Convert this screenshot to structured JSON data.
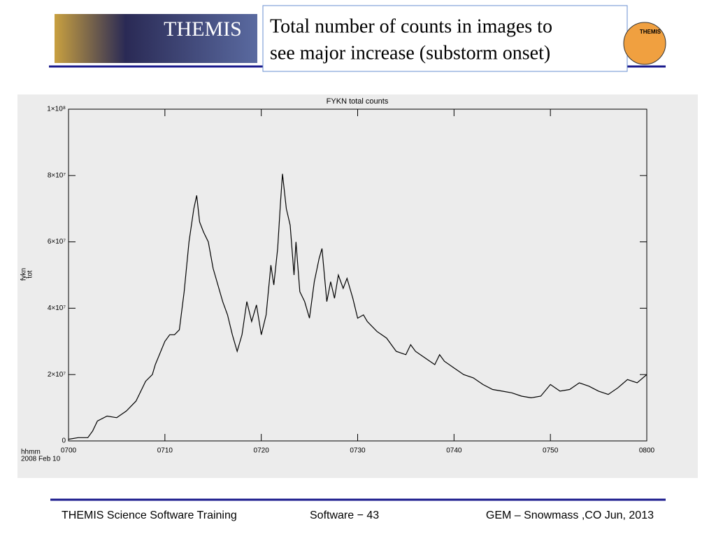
{
  "header": {
    "logo_text": "THEMIS",
    "title_lines": [
      "Total number of counts in images to",
      "see major increase (substorm onset)"
    ],
    "badge_text": "THEMIS"
  },
  "footer": {
    "left": "THEMIS Science Software Training",
    "center": "Software − 43",
    "right": "GEM – Snowmass ,CO  Jun, 2013"
  },
  "chart_data": {
    "type": "line",
    "title": "FYKN total counts",
    "y_label": [
      "fykn",
      "tot"
    ],
    "x_label": [
      "hhmm",
      "2008 Feb 10"
    ],
    "color": "#000000",
    "x": [
      0,
      1,
      2,
      2.5,
      3,
      4,
      5,
      6,
      7,
      8,
      8.7,
      9,
      10,
      10.5,
      11,
      11.5,
      12,
      12.5,
      13,
      13.3,
      13.6,
      14,
      14.5,
      15,
      16,
      16.5,
      17,
      17.5,
      18,
      18.5,
      19,
      19.5,
      20,
      20.5,
      21,
      21.3,
      21.7,
      22,
      22.2,
      22.6,
      23,
      23.4,
      23.6,
      24,
      24.5,
      25,
      25.5,
      26,
      26.3,
      26.8,
      27.2,
      27.6,
      28,
      28.5,
      28.9,
      29.5,
      30,
      30.6,
      31,
      32,
      33,
      34,
      35,
      35.5,
      36,
      37,
      38,
      38.5,
      39,
      40,
      41,
      42,
      43,
      44,
      45,
      46,
      47,
      48,
      49,
      50,
      51,
      52,
      53,
      54,
      55,
      56,
      57,
      58,
      59,
      60
    ],
    "values": [
      500000.0,
      1000000.0,
      1000000.0,
      3000000.0,
      6000000.0,
      7500000.0,
      7000000.0,
      9000000.0,
      12000000.0,
      18000000.0,
      20000000.0,
      23000000.0,
      30000000.0,
      32000000.0,
      32000000.0,
      33500000.0,
      45000000.0,
      60000000.0,
      70000000.0,
      74000000.0,
      66000000.0,
      63000000.0,
      60000000.0,
      52000000.0,
      42000000.0,
      38000000.0,
      32000000.0,
      27000000.0,
      32000000.0,
      42000000.0,
      36000000.0,
      41000000.0,
      32000000.0,
      38000000.0,
      53000000.0,
      47000000.0,
      58000000.0,
      72000000.0,
      80500000.0,
      70000000.0,
      65000000.0,
      50000000.0,
      60000000.0,
      45000000.0,
      42000000.0,
      37000000.0,
      48000000.0,
      55000000.0,
      58000000.0,
      42000000.0,
      48000000.0,
      43000000.0,
      50000000.0,
      46000000.0,
      49000000.0,
      43000000.0,
      37000000.0,
      38000000.0,
      36000000.0,
      33000000.0,
      31000000.0,
      27000000.0,
      26000000.0,
      29000000.0,
      27000000.0,
      25000000.0,
      23000000.0,
      26000000.0,
      24000000.0,
      22000000.0,
      20000000.0,
      19000000.0,
      17000000.0,
      15500000.0,
      15000000.0,
      14500000.0,
      13500000.0,
      13000000.0,
      13500000.0,
      17000000.0,
      15000000.0,
      15500000.0,
      17500000.0,
      16500000.0,
      15000000.0,
      14000000.0,
      16000000.0,
      18500000.0,
      17500000.0,
      20000000.0
    ],
    "xlim": [
      0,
      60
    ],
    "xticks": [
      {
        "value": 0,
        "label": "0700"
      },
      {
        "value": 10,
        "label": "0710"
      },
      {
        "value": 20,
        "label": "0720"
      },
      {
        "value": 30,
        "label": "0730"
      },
      {
        "value": 40,
        "label": "0740"
      },
      {
        "value": 50,
        "label": "0750"
      },
      {
        "value": 60,
        "label": "0800"
      }
    ],
    "ylim": [
      0,
      100000000
    ],
    "yticks": [
      0,
      {
        "value": 20000000,
        "label": "2×10⁷"
      },
      {
        "value": 40000000,
        "label": "4×10⁷"
      },
      {
        "value": 60000000,
        "label": "6×10⁷"
      },
      {
        "value": 80000000,
        "label": "8×10⁷"
      },
      {
        "value": 100000000,
        "label": "1×10⁸"
      }
    ]
  }
}
